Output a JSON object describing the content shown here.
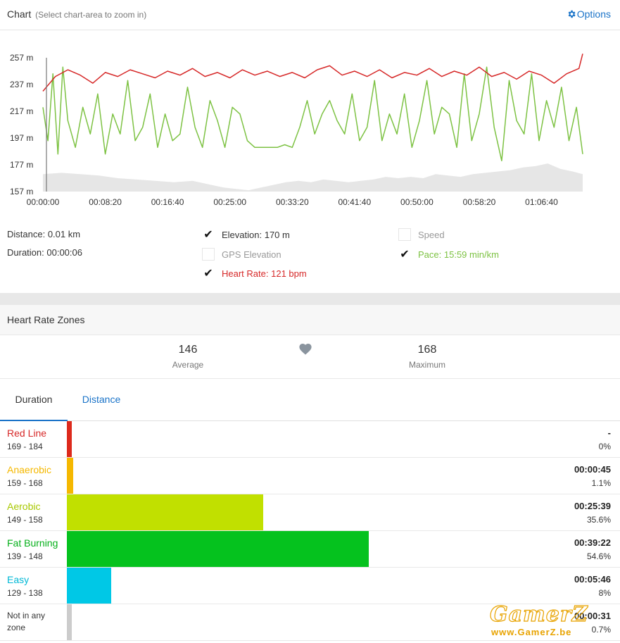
{
  "header": {
    "title": "Chart",
    "subtitle": "(Select chart-area to zoom in)",
    "options_label": "Options"
  },
  "chart_data": {
    "type": "line",
    "title": "",
    "xlabel": "",
    "ylabel": "",
    "x_ticks": [
      "00:00:00",
      "00:08:20",
      "00:16:40",
      "00:25:00",
      "00:33:20",
      "00:41:40",
      "00:50:00",
      "00:58:20",
      "01:06:40"
    ],
    "y_ticks": [
      "257 m",
      "237 m",
      "217 m",
      "197 m",
      "177 m",
      "157 m"
    ],
    "x_range_seconds": [
      0,
      4330
    ],
    "ylim": [
      157,
      257
    ],
    "grid": false,
    "series": [
      {
        "name": "Heart Rate",
        "color": "#d62828",
        "x": [
          0,
          100,
          200,
          300,
          400,
          500,
          600,
          700,
          800,
          900,
          1000,
          1100,
          1200,
          1300,
          1400,
          1500,
          1600,
          1700,
          1800,
          1900,
          2000,
          2100,
          2200,
          2300,
          2400,
          2500,
          2600,
          2700,
          2800,
          2900,
          3000,
          3100,
          3200,
          3300,
          3400,
          3500,
          3600,
          3700,
          3800,
          3900,
          4000,
          4100,
          4200,
          4300,
          4330
        ],
        "y": [
          232,
          243,
          248,
          244,
          238,
          246,
          243,
          248,
          245,
          242,
          247,
          244,
          249,
          243,
          246,
          242,
          248,
          244,
          247,
          243,
          246,
          242,
          248,
          251,
          244,
          247,
          243,
          248,
          242,
          246,
          244,
          249,
          243,
          247,
          244,
          250,
          243,
          246,
          241,
          247,
          244,
          238,
          245,
          249,
          260
        ]
      },
      {
        "name": "Pace",
        "color": "#7dc243",
        "x": [
          0,
          40,
          80,
          120,
          160,
          200,
          260,
          320,
          380,
          440,
          500,
          560,
          620,
          680,
          740,
          800,
          860,
          920,
          980,
          1040,
          1100,
          1160,
          1220,
          1280,
          1340,
          1400,
          1460,
          1520,
          1580,
          1640,
          1700,
          1760,
          1820,
          1880,
          1940,
          2000,
          2060,
          2120,
          2180,
          2240,
          2300,
          2360,
          2420,
          2480,
          2540,
          2600,
          2660,
          2720,
          2780,
          2840,
          2900,
          2960,
          3020,
          3080,
          3140,
          3200,
          3260,
          3320,
          3380,
          3440,
          3500,
          3560,
          3620,
          3680,
          3740,
          3800,
          3860,
          3920,
          3980,
          4040,
          4100,
          4160,
          4220,
          4280,
          4330
        ],
        "y": [
          220,
          195,
          245,
          185,
          250,
          210,
          190,
          220,
          200,
          230,
          185,
          215,
          200,
          240,
          195,
          205,
          230,
          190,
          215,
          195,
          200,
          235,
          205,
          190,
          225,
          210,
          190,
          220,
          215,
          195,
          190,
          190,
          190,
          190,
          192,
          190,
          205,
          225,
          200,
          215,
          225,
          210,
          200,
          230,
          195,
          205,
          240,
          195,
          215,
          200,
          230,
          190,
          210,
          240,
          200,
          220,
          215,
          190,
          245,
          195,
          215,
          250,
          205,
          180,
          240,
          210,
          200,
          245,
          195,
          225,
          205,
          235,
          195,
          220,
          185
        ]
      },
      {
        "name": "Elevation",
        "color": "#e6e6e6",
        "x": [
          0,
          150,
          300,
          450,
          600,
          750,
          900,
          1050,
          1200,
          1350,
          1450,
          1550,
          1650,
          1750,
          1850,
          1950,
          2050,
          2150,
          2250,
          2350,
          2450,
          2550,
          2650,
          2750,
          2850,
          2950,
          3050,
          3150,
          3250,
          3350,
          3450,
          3550,
          3650,
          3750,
          3850,
          3950,
          4050,
          4150,
          4250,
          4330
        ],
        "y": [
          170,
          171,
          170,
          169,
          167,
          166,
          165,
          164,
          165,
          162,
          160,
          159,
          158,
          160,
          162,
          164,
          165,
          164,
          166,
          165,
          164,
          165,
          166,
          168,
          167,
          168,
          167,
          170,
          169,
          168,
          170,
          171,
          172,
          173,
          175,
          176,
          178,
          174,
          172,
          170
        ]
      }
    ]
  },
  "stats": {
    "distance_label": "Distance:",
    "distance_value": "0.01 km",
    "duration_label": "Duration:",
    "duration_value": "00:00:06"
  },
  "toggles": {
    "elevation": {
      "label": "Elevation:",
      "value": "170 m",
      "checked": true,
      "color": "#333333"
    },
    "gps_elevation": {
      "label": "GPS Elevation",
      "checked": false,
      "color": "#999999"
    },
    "heart_rate": {
      "label": "Heart Rate:",
      "value": "121 bpm",
      "checked": true,
      "color": "#d62828"
    },
    "speed": {
      "label": "Speed",
      "checked": false,
      "color": "#999999"
    },
    "pace": {
      "label": "Pace:",
      "value": "15:59 min/km",
      "checked": true,
      "color": "#7dc243"
    }
  },
  "hr_zones": {
    "title": "Heart Rate Zones",
    "average_value": "146",
    "average_label": "Average",
    "maximum_value": "168",
    "maximum_label": "Maximum",
    "tabs": [
      {
        "label": "Duration"
      },
      {
        "label": "Distance"
      }
    ],
    "zones": [
      {
        "name": "Red Line",
        "range": "169 - 184",
        "time": "-",
        "pct": "0%",
        "fraction": 0.0,
        "color": "#dd2a1c",
        "text_color": "#d62828"
      },
      {
        "name": "Anaerobic",
        "range": "159 - 168",
        "time": "00:00:45",
        "pct": "1.1%",
        "fraction": 0.011,
        "color": "#f5b800",
        "text_color": "#f5b800"
      },
      {
        "name": "Aerobic",
        "range": "149 - 158",
        "time": "00:25:39",
        "pct": "35.6%",
        "fraction": 0.356,
        "color": "#c1e000",
        "text_color": "#a8c800"
      },
      {
        "name": "Fat Burning",
        "range": "139 - 148",
        "time": "00:39:22",
        "pct": "54.6%",
        "fraction": 0.546,
        "color": "#05c21e",
        "text_color": "#05b01a"
      },
      {
        "name": "Easy",
        "range": "129 - 138",
        "time": "00:05:46",
        "pct": "8%",
        "fraction": 0.08,
        "color": "#00c8e6",
        "text_color": "#00b8d6"
      },
      {
        "name": "Not in any zone",
        "range": "",
        "time": "00:00:31",
        "pct": "0.7%",
        "fraction": 0.007,
        "color": "#cccccc",
        "text_color": "#333333"
      }
    ]
  },
  "watermark": {
    "logo": "GamerZ",
    "url": "www.GamerZ.be"
  }
}
